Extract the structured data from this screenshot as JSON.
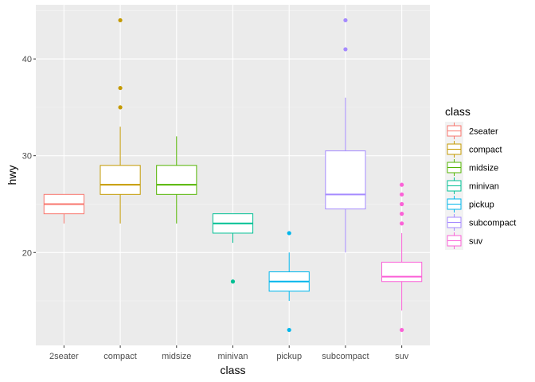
{
  "chart_data": {
    "type": "boxplot",
    "xlabel": "class",
    "ylabel": "hwy",
    "ylim": [
      10.4,
      45.6
    ],
    "yticks": [
      20,
      30,
      40
    ],
    "grid": true,
    "legend_title": "class",
    "legend_position": "right",
    "categories": [
      "2seater",
      "compact",
      "midsize",
      "minivan",
      "pickup",
      "subcompact",
      "suv"
    ],
    "colors": [
      "#F8766D",
      "#C49A00",
      "#53B400",
      "#00C094",
      "#00B6EB",
      "#A58AFF",
      "#FB61D7"
    ],
    "boxes": [
      {
        "category": "2seater",
        "whisker_low": 23,
        "q1": 24,
        "median": 25,
        "q3": 26,
        "whisker_high": 26,
        "outliers": []
      },
      {
        "category": "compact",
        "whisker_low": 23,
        "q1": 26,
        "median": 27,
        "q3": 29,
        "whisker_high": 33,
        "outliers": [
          35,
          37,
          44
        ]
      },
      {
        "category": "midsize",
        "whisker_low": 23,
        "q1": 26,
        "median": 27,
        "q3": 29,
        "whisker_high": 32,
        "outliers": []
      },
      {
        "category": "minivan",
        "whisker_low": 21,
        "q1": 22,
        "median": 23,
        "q3": 24,
        "whisker_high": 24,
        "outliers": [
          17
        ]
      },
      {
        "category": "pickup",
        "whisker_low": 15,
        "q1": 16,
        "median": 17,
        "q3": 18,
        "whisker_high": 20,
        "outliers": [
          12,
          22
        ]
      },
      {
        "category": "subcompact",
        "whisker_low": 20,
        "q1": 24.5,
        "median": 26,
        "q3": 30.5,
        "whisker_high": 36,
        "outliers": [
          41,
          44
        ]
      },
      {
        "category": "suv",
        "whisker_low": 14,
        "q1": 17,
        "median": 17.5,
        "q3": 19,
        "whisker_high": 22,
        "outliers": [
          12,
          23,
          24,
          25,
          26,
          27
        ]
      }
    ]
  }
}
